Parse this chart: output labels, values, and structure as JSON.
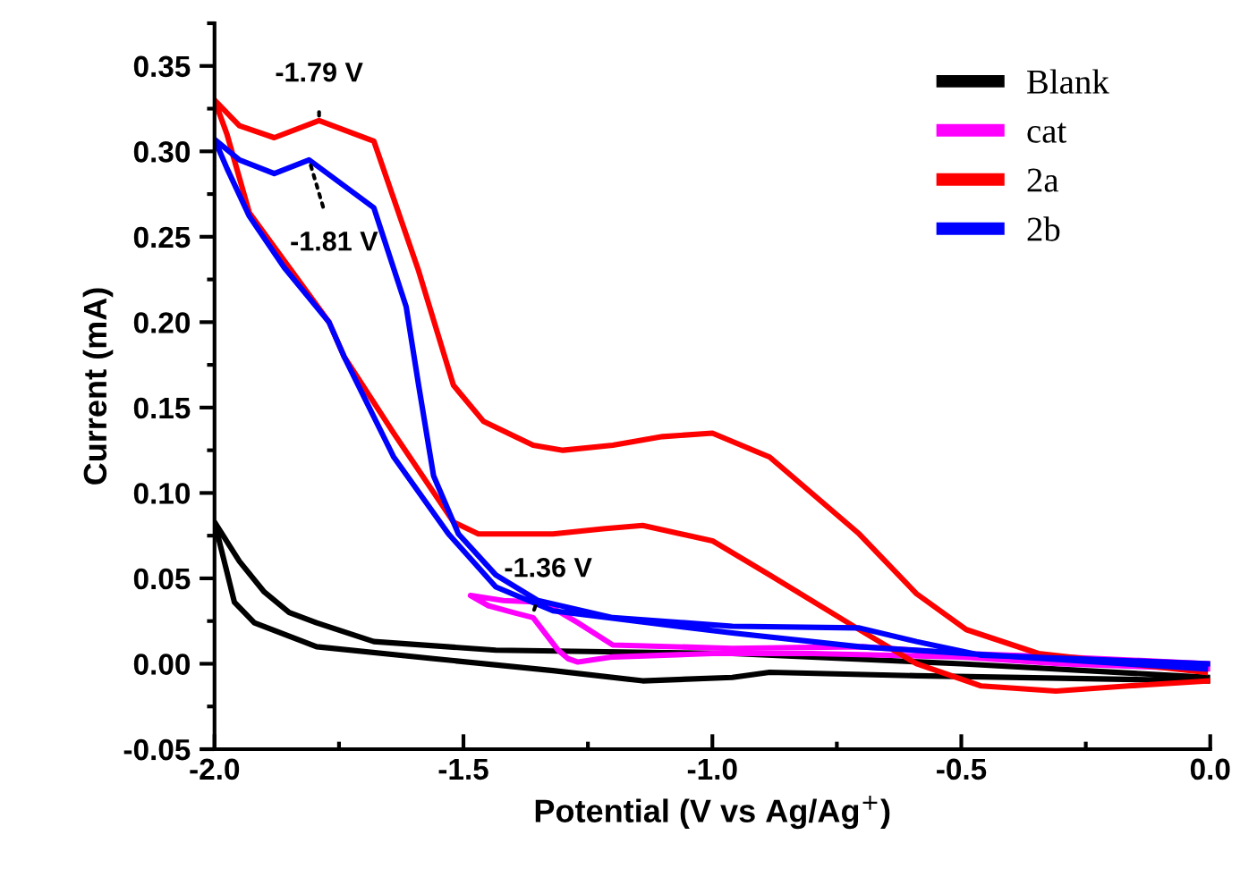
{
  "chart_data": {
    "type": "line",
    "xlabel": "Potential (V vs Ag/Ag$^{+}$)",
    "ylabel": "Current (mA)",
    "xlim": [
      -2.0,
      0.0
    ],
    "ylim": [
      -0.05,
      0.375
    ],
    "xticks": [
      {
        "value": -2.0,
        "label": "-2.0"
      },
      {
        "value": -1.5,
        "label": "-1.5"
      },
      {
        "value": -1.0,
        "label": "-1.0"
      },
      {
        "value": -0.5,
        "label": "-0.5"
      },
      {
        "value": 0.0,
        "label": "0.0"
      }
    ],
    "yticks": [
      {
        "value": -0.05,
        "label": "-0.05"
      },
      {
        "value": 0.0,
        "label": "0.00"
      },
      {
        "value": 0.05,
        "label": "0.05"
      },
      {
        "value": 0.1,
        "label": "0.10"
      },
      {
        "value": 0.15,
        "label": "0.15"
      },
      {
        "value": 0.2,
        "label": "0.20"
      },
      {
        "value": 0.25,
        "label": "0.25"
      },
      {
        "value": 0.3,
        "label": "0.30"
      },
      {
        "value": 0.35,
        "label": "0.35"
      }
    ],
    "grid": false,
    "legend": "top right",
    "marker": "none",
    "line_style": "solid",
    "series": [
      {
        "name": "Blank",
        "color": "#000000",
        "x": [
          0.0,
          -0.5,
          -0.96,
          -1.435,
          -1.68,
          -1.795,
          -1.85,
          -1.9,
          -1.95,
          -2.0,
          -1.96,
          -1.92,
          -1.795,
          -1.56,
          -1.32,
          -1.14,
          -0.96,
          -0.885,
          -0.59,
          0.0
        ],
        "values": [
          -0.008,
          0.0,
          0.006,
          0.008,
          0.013,
          0.024,
          0.03,
          0.042,
          0.06,
          0.083,
          0.036,
          0.024,
          0.01,
          0.003,
          -0.004,
          -0.01,
          -0.008,
          -0.005,
          -0.007,
          -0.01
        ]
      },
      {
        "name": "cat",
        "color": "#ff00ff",
        "x": [
          0.0,
          -0.3,
          -0.5,
          -0.7,
          -0.96,
          -1.2,
          -1.27,
          -1.34,
          -1.42,
          -1.486,
          -1.45,
          -1.4,
          -1.36,
          -1.31,
          -1.29,
          -1.27,
          -1.2,
          -1.0,
          -0.8,
          -0.5,
          -0.3,
          0.0
        ],
        "values": [
          0.0,
          0.004,
          0.006,
          0.01,
          0.009,
          0.011,
          0.024,
          0.036,
          0.037,
          0.04,
          0.034,
          0.03,
          0.027,
          0.008,
          0.003,
          0.001,
          0.004,
          0.006,
          0.006,
          0.004,
          0.0,
          -0.003
        ]
      },
      {
        "name": "2a",
        "color": "#ff0000",
        "x": [
          -0.01,
          -0.345,
          -0.49,
          -0.59,
          -0.705,
          -0.885,
          -1.0,
          -1.1,
          -1.2,
          -1.3,
          -1.36,
          -1.46,
          -1.52,
          -1.59,
          -1.68,
          -1.79,
          -1.88,
          -1.95,
          -2.0,
          -1.975,
          -1.93,
          -1.86,
          -1.77,
          -1.74,
          -1.64,
          -1.52,
          -1.47,
          -1.32,
          -1.22,
          -1.14,
          -1.0,
          -0.885,
          -0.705,
          -0.59,
          -0.46,
          -0.31,
          -0.165,
          0.0
        ],
        "values": [
          -0.005,
          0.006,
          0.02,
          0.041,
          0.076,
          0.121,
          0.135,
          0.133,
          0.128,
          0.125,
          0.128,
          0.142,
          0.163,
          0.23,
          0.306,
          0.318,
          0.308,
          0.315,
          0.33,
          0.31,
          0.264,
          0.236,
          0.2,
          0.18,
          0.135,
          0.083,
          0.076,
          0.076,
          0.079,
          0.081,
          0.072,
          0.052,
          0.02,
          0.0,
          -0.013,
          -0.016,
          -0.013,
          -0.01
        ]
      },
      {
        "name": "2b",
        "color": "#0000ff",
        "x": [
          0.0,
          -0.46,
          -0.59,
          -0.705,
          -0.96,
          -1.2,
          -1.35,
          -1.435,
          -1.51,
          -1.56,
          -1.59,
          -1.615,
          -1.68,
          -1.81,
          -1.88,
          -1.95,
          -2.0,
          -1.975,
          -1.93,
          -1.86,
          -1.77,
          -1.74,
          -1.64,
          -1.53,
          -1.435,
          -1.32,
          -0.96,
          -0.705,
          -0.01
        ],
        "values": [
          0.0,
          0.005,
          0.013,
          0.021,
          0.022,
          0.027,
          0.037,
          0.052,
          0.076,
          0.11,
          0.163,
          0.209,
          0.267,
          0.295,
          0.287,
          0.295,
          0.307,
          0.29,
          0.262,
          0.232,
          0.2,
          0.18,
          0.121,
          0.076,
          0.045,
          0.031,
          0.018,
          0.01,
          -0.003
        ]
      }
    ],
    "annotations": [
      {
        "text": "-1.79 V",
        "x": -1.79,
        "y": 0.318
      },
      {
        "text": "-1.81 V",
        "x": -1.81,
        "y": 0.295
      },
      {
        "text": "-1.36 V",
        "x": -1.36,
        "y": 0.03
      }
    ]
  }
}
